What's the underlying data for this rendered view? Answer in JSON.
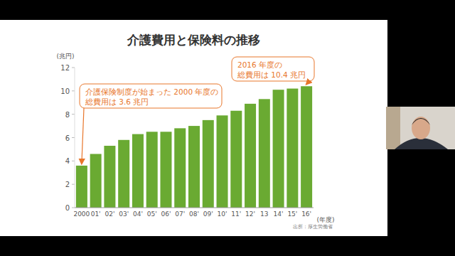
{
  "chart_data": {
    "type": "bar",
    "title": "介護費用と保険料の推移",
    "y_label": "(兆円)",
    "x_label": "(年度)",
    "source": "出所：厚生労働省",
    "categories": [
      "2000",
      "01'",
      "02'",
      "03'",
      "04'",
      "05'",
      "06'",
      "07'",
      "08'",
      "09'",
      "10'",
      "11'",
      "12'",
      "13",
      "14'",
      "15'",
      "16'"
    ],
    "values": [
      3.6,
      4.6,
      5.3,
      5.8,
      6.3,
      6.5,
      6.5,
      6.8,
      7.0,
      7.5,
      7.9,
      8.3,
      8.9,
      9.3,
      10.1,
      10.2,
      10.4
    ],
    "color": "#6aaa32",
    "ylim": [
      0,
      12
    ],
    "yticks": [
      0,
      2,
      4,
      6,
      8,
      10,
      12
    ],
    "grid": false,
    "annotations": [
      [
        "介護保険制度が始まった 2000 年度の",
        "総費用は 3.6 兆円"
      ],
      [
        "2016 年度の",
        "総費用は 10.4 兆円"
      ]
    ]
  }
}
